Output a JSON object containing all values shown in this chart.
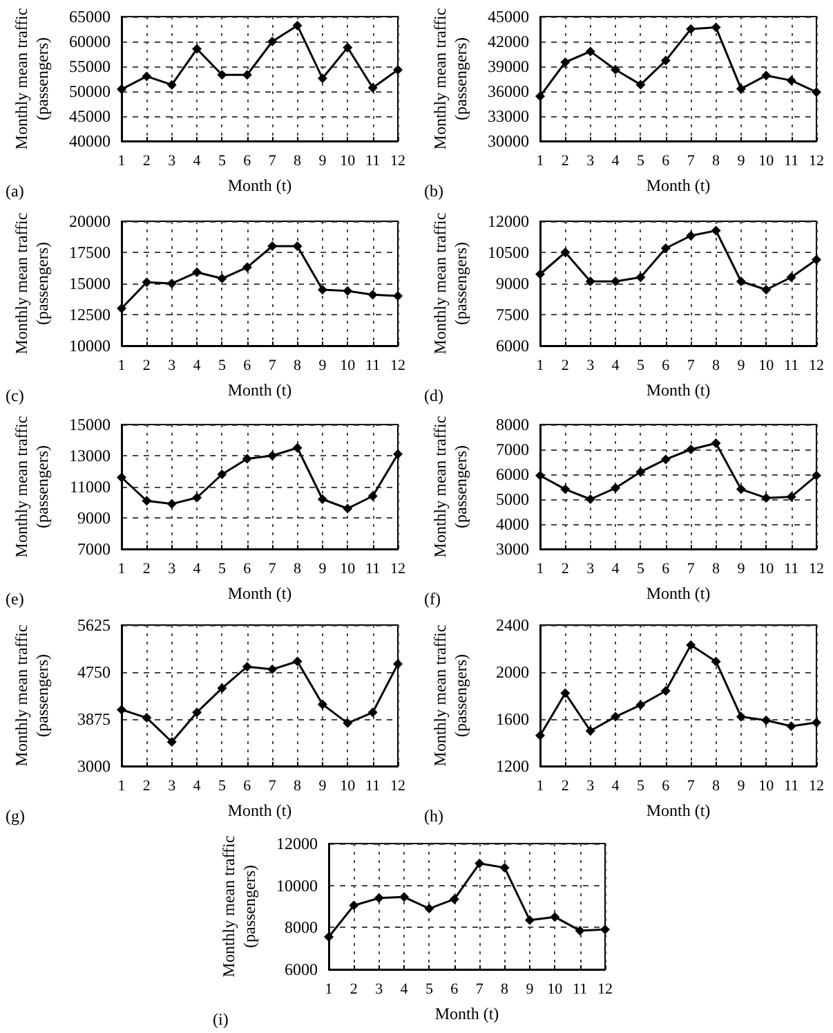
{
  "chart_data": [
    {
      "type": "line",
      "x": [
        1,
        2,
        3,
        4,
        5,
        6,
        7,
        8,
        9,
        10,
        11,
        12
      ],
      "xlim": [
        1,
        12
      ],
      "xticks": [
        1,
        2,
        3,
        4,
        5,
        6,
        7,
        8,
        9,
        10,
        11,
        12
      ],
      "values": [
        50400,
        53000,
        51300,
        58500,
        53300,
        53300,
        60000,
        63200,
        52600,
        58800,
        50700,
        54300
      ],
      "color": "#000000",
      "ylim": [
        40000,
        65000
      ],
      "yticks": [
        40000,
        45000,
        50000,
        55000,
        60000,
        65000
      ],
      "xlabel": "Month (t)",
      "ylabel": "Monthly mean traffic\n(passengers)",
      "annotations": [
        "(a)"
      ],
      "grid": true,
      "marker": "diamond",
      "line_style": "solid"
    },
    {
      "type": "line",
      "x": [
        1,
        2,
        3,
        4,
        5,
        6,
        7,
        8,
        9,
        10,
        11,
        12
      ],
      "xlim": [
        1,
        12
      ],
      "xticks": [
        1,
        2,
        3,
        4,
        5,
        6,
        7,
        8,
        9,
        10,
        11,
        12
      ],
      "values": [
        35400,
        39500,
        40800,
        38600,
        36800,
        39700,
        43500,
        43700,
        36300,
        37900,
        37300,
        35900
      ],
      "color": "#000000",
      "ylim": [
        30000,
        45000
      ],
      "yticks": [
        30000,
        33000,
        36000,
        39000,
        42000,
        45000
      ],
      "xlabel": "Month (t)",
      "ylabel": "Monthly mean traffic\n(passengers)",
      "annotations": [
        "(b)"
      ],
      "grid": true,
      "marker": "diamond",
      "line_style": "solid"
    },
    {
      "type": "line",
      "x": [
        1,
        2,
        3,
        4,
        5,
        6,
        7,
        8,
        9,
        10,
        11,
        12
      ],
      "xlim": [
        1,
        12
      ],
      "xticks": [
        1,
        2,
        3,
        4,
        5,
        6,
        7,
        8,
        9,
        10,
        11,
        12
      ],
      "values": [
        13000,
        15100,
        15000,
        15900,
        15400,
        16300,
        18000,
        18000,
        14500,
        14400,
        14100,
        14000
      ],
      "color": "#000000",
      "ylim": [
        10000,
        20000
      ],
      "yticks": [
        10000,
        12500,
        15000,
        17500,
        20000
      ],
      "xlabel": "Month (t)",
      "ylabel": "Monthly mean traffic\n(passengers)",
      "annotations": [
        "(c)"
      ],
      "grid": true,
      "marker": "diamond",
      "line_style": "solid"
    },
    {
      "type": "line",
      "x": [
        1,
        2,
        3,
        4,
        5,
        6,
        7,
        8,
        9,
        10,
        11,
        12
      ],
      "xlim": [
        1,
        12
      ],
      "xticks": [
        1,
        2,
        3,
        4,
        5,
        6,
        7,
        8,
        9,
        10,
        11,
        12
      ],
      "values": [
        9450,
        10500,
        9100,
        9100,
        9300,
        10700,
        11300,
        11550,
        9100,
        8700,
        9300,
        10150
      ],
      "color": "#000000",
      "ylim": [
        6000,
        12000
      ],
      "yticks": [
        6000,
        7500,
        9000,
        10500,
        12000
      ],
      "xlabel": "Month (t)",
      "ylabel": "Monthly mean traffic\n(passengers)",
      "annotations": [
        "(d)"
      ],
      "grid": true,
      "marker": "diamond",
      "line_style": "solid"
    },
    {
      "type": "line",
      "x": [
        1,
        2,
        3,
        4,
        5,
        6,
        7,
        8,
        9,
        10,
        11,
        12
      ],
      "xlim": [
        1,
        12
      ],
      "xticks": [
        1,
        2,
        3,
        4,
        5,
        6,
        7,
        8,
        9,
        10,
        11,
        12
      ],
      "values": [
        11600,
        10100,
        9900,
        10300,
        11800,
        12800,
        13000,
        13500,
        10200,
        9600,
        10400,
        13100
      ],
      "color": "#000000",
      "ylim": [
        7000,
        15000
      ],
      "yticks": [
        7000,
        9000,
        11000,
        13000,
        15000
      ],
      "xlabel": "Month (t)",
      "ylabel": "Monthly mean traffic\n(passengers)",
      "annotations": [
        "(e)"
      ],
      "grid": true,
      "marker": "diamond",
      "line_style": "solid"
    },
    {
      "type": "line",
      "x": [
        1,
        2,
        3,
        4,
        5,
        6,
        7,
        8,
        9,
        10,
        11,
        12
      ],
      "xlim": [
        1,
        12
      ],
      "xticks": [
        1,
        2,
        3,
        4,
        5,
        6,
        7,
        8,
        9,
        10,
        11,
        12
      ],
      "values": [
        5950,
        5400,
        5000,
        5450,
        6100,
        6600,
        7000,
        7250,
        5400,
        5050,
        5100,
        5950
      ],
      "color": "#000000",
      "ylim": [
        3000,
        8000
      ],
      "yticks": [
        3000,
        4000,
        5000,
        6000,
        7000,
        8000
      ],
      "xlabel": "Month (t)",
      "ylabel": "Monthly mean traffic\n(passengers)",
      "annotations": [
        "(f)"
      ],
      "grid": true,
      "marker": "diamond",
      "line_style": "solid"
    },
    {
      "type": "line",
      "x": [
        1,
        2,
        3,
        4,
        5,
        6,
        7,
        8,
        9,
        10,
        11,
        12
      ],
      "xlim": [
        1,
        12
      ],
      "xticks": [
        1,
        2,
        3,
        4,
        5,
        6,
        7,
        8,
        9,
        10,
        11,
        12
      ],
      "values": [
        4050,
        3900,
        3450,
        4000,
        4450,
        4850,
        4800,
        4950,
        4150,
        3800,
        4000,
        4900
      ],
      "color": "#000000",
      "ylim": [
        3000,
        5625
      ],
      "yticks": [
        3000,
        3875,
        4750,
        5625
      ],
      "xlabel": "Month (t)",
      "ylabel": "Monthly mean traffic\n(passengers)",
      "annotations": [
        "(g)"
      ],
      "grid": true,
      "marker": "diamond",
      "line_style": "solid"
    },
    {
      "type": "line",
      "x": [
        1,
        2,
        3,
        4,
        5,
        6,
        7,
        8,
        9,
        10,
        11,
        12
      ],
      "xlim": [
        1,
        12
      ],
      "xticks": [
        1,
        2,
        3,
        4,
        5,
        6,
        7,
        8,
        9,
        10,
        11,
        12
      ],
      "values": [
        1460,
        1820,
        1500,
        1620,
        1720,
        1840,
        2230,
        2090,
        1620,
        1590,
        1540,
        1570
      ],
      "color": "#000000",
      "ylim": [
        1200,
        2400
      ],
      "yticks": [
        1200,
        1600,
        2000,
        2400
      ],
      "xlabel": "Month (t)",
      "ylabel": "Monthly mean traffic\n(passengers)",
      "annotations": [
        "(h)"
      ],
      "grid": true,
      "marker": "diamond",
      "line_style": "solid"
    },
    {
      "type": "line",
      "x": [
        1,
        2,
        3,
        4,
        5,
        6,
        7,
        8,
        9,
        10,
        11,
        12
      ],
      "xlim": [
        1,
        12
      ],
      "xticks": [
        1,
        2,
        3,
        4,
        5,
        6,
        7,
        8,
        9,
        10,
        11,
        12
      ],
      "values": [
        7550,
        9050,
        9400,
        9450,
        8900,
        9350,
        11050,
        10850,
        8350,
        8500,
        7850,
        7900
      ],
      "color": "#000000",
      "ylim": [
        6000,
        12000
      ],
      "yticks": [
        6000,
        8000,
        10000,
        12000
      ],
      "xlabel": "Month (t)",
      "ylabel": "Monthly mean traffic\n(passengers)",
      "annotations": [
        "(i)"
      ],
      "grid": true,
      "marker": "diamond",
      "line_style": "solid"
    }
  ]
}
